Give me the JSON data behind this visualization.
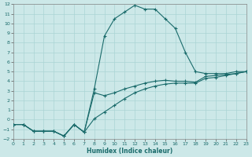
{
  "xlabel": "Humidex (Indice chaleur)",
  "bg_color": "#cce8e8",
  "grid_color": "#aad4d4",
  "line_color": "#1a6b6b",
  "xlim": [
    0,
    23
  ],
  "ylim": [
    -2,
    12
  ],
  "xticks": [
    0,
    1,
    2,
    3,
    4,
    5,
    6,
    7,
    8,
    9,
    10,
    11,
    12,
    13,
    14,
    15,
    16,
    17,
    18,
    19,
    20,
    21,
    22,
    23
  ],
  "yticks": [
    -2,
    -1,
    0,
    1,
    2,
    3,
    4,
    5,
    6,
    7,
    8,
    9,
    10,
    11,
    12
  ],
  "line1_x": [
    0,
    1,
    2,
    3,
    4,
    5,
    6,
    7,
    8,
    9,
    10,
    11,
    12,
    13,
    14,
    15,
    16,
    17,
    18,
    19,
    20,
    21,
    22,
    23
  ],
  "line1_y": [
    -0.5,
    -0.5,
    -1.2,
    -1.2,
    -1.2,
    -1.7,
    -0.5,
    -1.3,
    3.2,
    8.7,
    10.5,
    11.2,
    11.9,
    11.5,
    11.5,
    10.5,
    9.5,
    7.0,
    5.0,
    4.8,
    4.8,
    4.8,
    5.0,
    5.0
  ],
  "line2_x": [
    0,
    1,
    2,
    3,
    4,
    5,
    6,
    7,
    8,
    9,
    10,
    11,
    12,
    13,
    14,
    15,
    16,
    17,
    18,
    19,
    20,
    21,
    22,
    23
  ],
  "line2_y": [
    -0.5,
    -0.5,
    -1.2,
    -1.2,
    -1.2,
    -1.7,
    -0.5,
    -1.3,
    2.8,
    2.5,
    2.8,
    3.2,
    3.5,
    3.8,
    4.0,
    4.1,
    4.0,
    4.0,
    3.9,
    4.5,
    4.6,
    4.7,
    4.8,
    5.0
  ],
  "line3_x": [
    0,
    1,
    2,
    3,
    4,
    5,
    6,
    7,
    8,
    9,
    10,
    11,
    12,
    13,
    14,
    15,
    16,
    17,
    18,
    19,
    20,
    21,
    22,
    23
  ],
  "line3_y": [
    -0.5,
    -0.5,
    -1.2,
    -1.2,
    -1.2,
    -1.7,
    -0.5,
    -1.3,
    0.1,
    0.8,
    1.5,
    2.2,
    2.8,
    3.2,
    3.5,
    3.7,
    3.8,
    3.8,
    3.8,
    4.3,
    4.4,
    4.6,
    4.8,
    5.0
  ]
}
